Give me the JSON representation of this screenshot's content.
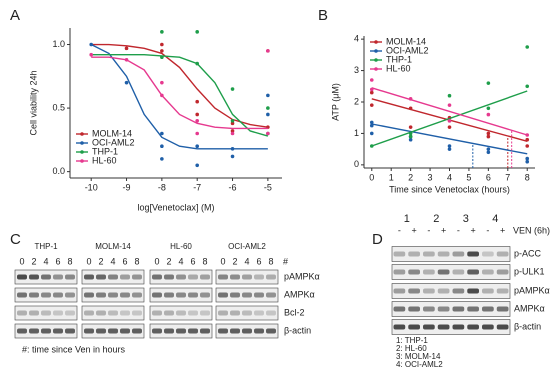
{
  "panel_labels": [
    "A",
    "B",
    "C",
    "D"
  ],
  "chart_data": [
    {
      "type": "line",
      "xlabel": "log[Venetoclax] (M)",
      "ylabel": "Cell viability 24h",
      "xlim": [
        -10.6,
        -4.6
      ],
      "ylim": [
        -0.05,
        1.13
      ],
      "xticks": [
        -10,
        -9,
        -8,
        -7,
        -6,
        -5
      ],
      "yticks": [
        {
          "value": 0,
          "label": "0.0"
        },
        0.5,
        {
          "value": 1,
          "label": "1.0"
        }
      ],
      "legend": "lower left",
      "series": [
        {
          "name": "MOLM-14",
          "color": "#c0272d",
          "x": [
            -10,
            -9.5,
            -9,
            -8.5,
            -8,
            -7.5,
            -7,
            -6.5,
            -6,
            -5.5,
            -5
          ],
          "values": [
            1.0,
            1.0,
            0.99,
            0.97,
            0.93,
            0.82,
            0.65,
            0.5,
            0.41,
            0.37,
            0.35
          ],
          "points_x": [
            -9,
            -8,
            -8,
            -7,
            -7,
            -6,
            -6,
            -5,
            -5
          ],
          "points_y": [
            0.97,
            1.0,
            0.95,
            0.45,
            0.55,
            0.32,
            0.38,
            0.95,
            0.35
          ]
        },
        {
          "name": "OCI-AML2",
          "color": "#1f5fa8",
          "x": [
            -10,
            -9.5,
            -9,
            -8.5,
            -8,
            -7.5,
            -7,
            -6.5,
            -6,
            -5.5,
            -5
          ],
          "values": [
            1.0,
            0.93,
            0.75,
            0.45,
            0.27,
            0.2,
            0.18,
            0.18,
            0.18,
            0.18,
            0.18
          ],
          "points_x": [
            -10,
            -9,
            -8,
            -8,
            -8,
            -7,
            -7,
            -6,
            -6,
            -5,
            -5
          ],
          "points_y": [
            1.0,
            0.7,
            0.3,
            0.2,
            0.1,
            0.2,
            0.05,
            0.18,
            0.12,
            0.6,
            0.45
          ]
        },
        {
          "name": "THP-1",
          "color": "#1e9e4a",
          "x": [
            -10,
            -9.5,
            -9,
            -8.5,
            -8,
            -7.5,
            -7,
            -6.5,
            -6,
            -5.5,
            -5
          ],
          "values": [
            0.92,
            0.92,
            0.92,
            0.92,
            0.91,
            0.9,
            0.85,
            0.7,
            0.45,
            0.32,
            0.28
          ],
          "points_x": [
            -8,
            -8,
            -7,
            -7,
            -6,
            -6,
            -5,
            -5
          ],
          "points_y": [
            1.1,
            0.9,
            1.1,
            0.85,
            0.65,
            0.4,
            0.5,
            0.3
          ]
        },
        {
          "name": "HL-60",
          "color": "#e6398f",
          "x": [
            -10,
            -9.5,
            -9,
            -8.5,
            -8,
            -7.5,
            -7,
            -6.5,
            -6,
            -5.5,
            -5
          ],
          "values": [
            0.9,
            0.9,
            0.88,
            0.8,
            0.6,
            0.45,
            0.38,
            0.35,
            0.34,
            0.34,
            0.34
          ],
          "points_x": [
            -10,
            -9,
            -8,
            -8,
            -7,
            -7,
            -6,
            -5,
            -5
          ],
          "points_y": [
            0.92,
            0.88,
            0.6,
            0.7,
            0.4,
            0.3,
            0.3,
            0.95,
            0.3
          ]
        }
      ]
    },
    {
      "type": "line",
      "xlabel": "Time since Venetoclax (hours)",
      "ylabel": "ATP (μM)",
      "xlim": [
        -0.4,
        8.4
      ],
      "ylim": [
        -0.1,
        4.1
      ],
      "xticks": [
        0,
        1,
        2,
        3,
        4,
        5,
        6,
        7,
        8
      ],
      "yticks": [
        0,
        1,
        2,
        3,
        4
      ],
      "legend": "upper left",
      "series": [
        {
          "name": "MOLM-14",
          "color": "#c0272d",
          "x": [
            0,
            8
          ],
          "values": [
            2.1,
            0.75
          ],
          "drop_x": 7.0,
          "points_x": [
            0,
            0,
            2,
            2,
            4,
            4,
            6,
            6,
            8,
            8
          ],
          "points_y": [
            2.3,
            1.9,
            1.8,
            1.2,
            1.2,
            1.5,
            1.0,
            0.9,
            0.8,
            0.6
          ]
        },
        {
          "name": "OCI-AML2",
          "color": "#1f5fa8",
          "x": [
            0,
            8
          ],
          "values": [
            1.3,
            0.35
          ],
          "drop_x": 5.2,
          "points_x": [
            0,
            0,
            0,
            2,
            2,
            4,
            4,
            6,
            6,
            8,
            8
          ],
          "points_y": [
            1.35,
            1.25,
            1.0,
            0.9,
            0.8,
            0.6,
            0.5,
            0.5,
            0.4,
            0.2,
            0.1
          ]
        },
        {
          "name": "THP-1",
          "color": "#1e9e4a",
          "x": [
            0,
            8
          ],
          "values": [
            0.6,
            2.35
          ],
          "points_x": [
            0,
            2,
            2,
            4,
            6,
            6,
            8,
            8
          ],
          "points_y": [
            0.6,
            0.9,
            1.0,
            2.2,
            2.6,
            1.8,
            3.75,
            2.5
          ]
        },
        {
          "name": "HL-60",
          "color": "#e6398f",
          "x": [
            0,
            8
          ],
          "values": [
            2.45,
            0.95
          ],
          "drop_x": 7.2,
          "points_x": [
            0,
            0,
            2,
            4,
            4,
            6,
            8
          ],
          "points_y": [
            2.7,
            2.4,
            2.1,
            1.9,
            1.4,
            1.6,
            0.95
          ]
        }
      ]
    }
  ],
  "blot_c": {
    "cell_lines": [
      {
        "name": "THP-1",
        "color": "#1e9e4a"
      },
      {
        "name": "MOLM-14",
        "color": "#c0272d"
      },
      {
        "name": "HL-60",
        "color": "#e6398f"
      },
      {
        "name": "OCI-AML2",
        "color": "#1f5fa8"
      }
    ],
    "times": [
      "0",
      "2",
      "4",
      "6",
      "8"
    ],
    "time_marker": "#",
    "rows": [
      "pAMPKα",
      "AMPKα",
      "Bcl-2",
      "β-actin"
    ],
    "note": "#: time since Ven in hours"
  },
  "blot_d": {
    "lanes": [
      {
        "name": "1",
        "color": "#1e9e4a"
      },
      {
        "name": "2",
        "color": "#e6398f"
      },
      {
        "name": "3",
        "color": "#c0272d"
      },
      {
        "name": "4",
        "color": "#1f5fa8"
      }
    ],
    "treatment": [
      "-",
      "+"
    ],
    "treatment_label": "VEN (6h)",
    "rows": [
      "p-ACC",
      "p-ULK1",
      "pAMPKα",
      "AMPKα",
      "β-actin"
    ],
    "legend": [
      "1: THP-1",
      "2: HL-60",
      "3: MOLM-14",
      "4: OCI-AML2"
    ]
  }
}
